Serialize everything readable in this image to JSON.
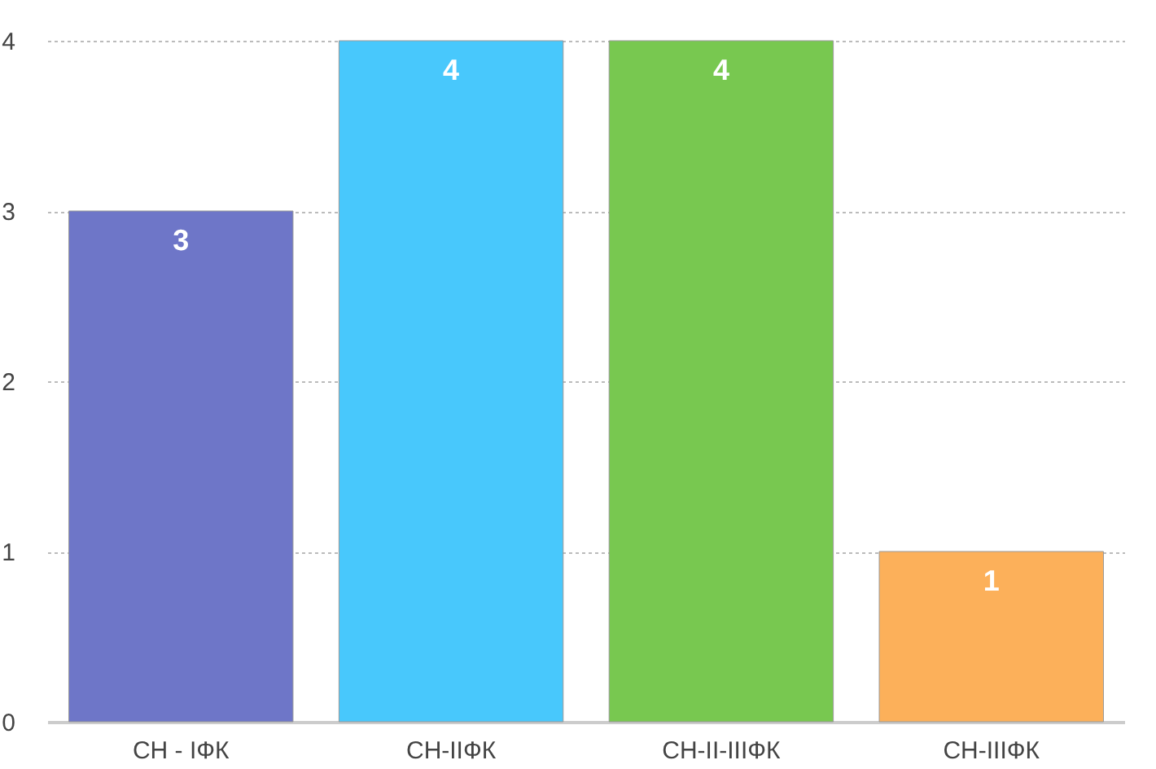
{
  "chart_data": {
    "type": "bar",
    "categories": [
      "СН - IФК",
      "СН-IIФК",
      "СН-II-IIIФК",
      "СН-IIIФК"
    ],
    "values": [
      3,
      4,
      4,
      1
    ],
    "colors": [
      "#6e76c8",
      "#48c8fc",
      "#78c850",
      "#fcb05a"
    ],
    "ylim": [
      0,
      4
    ],
    "yticks": [
      0,
      1,
      2,
      3,
      4
    ],
    "grid": "y",
    "data_labels": true
  }
}
